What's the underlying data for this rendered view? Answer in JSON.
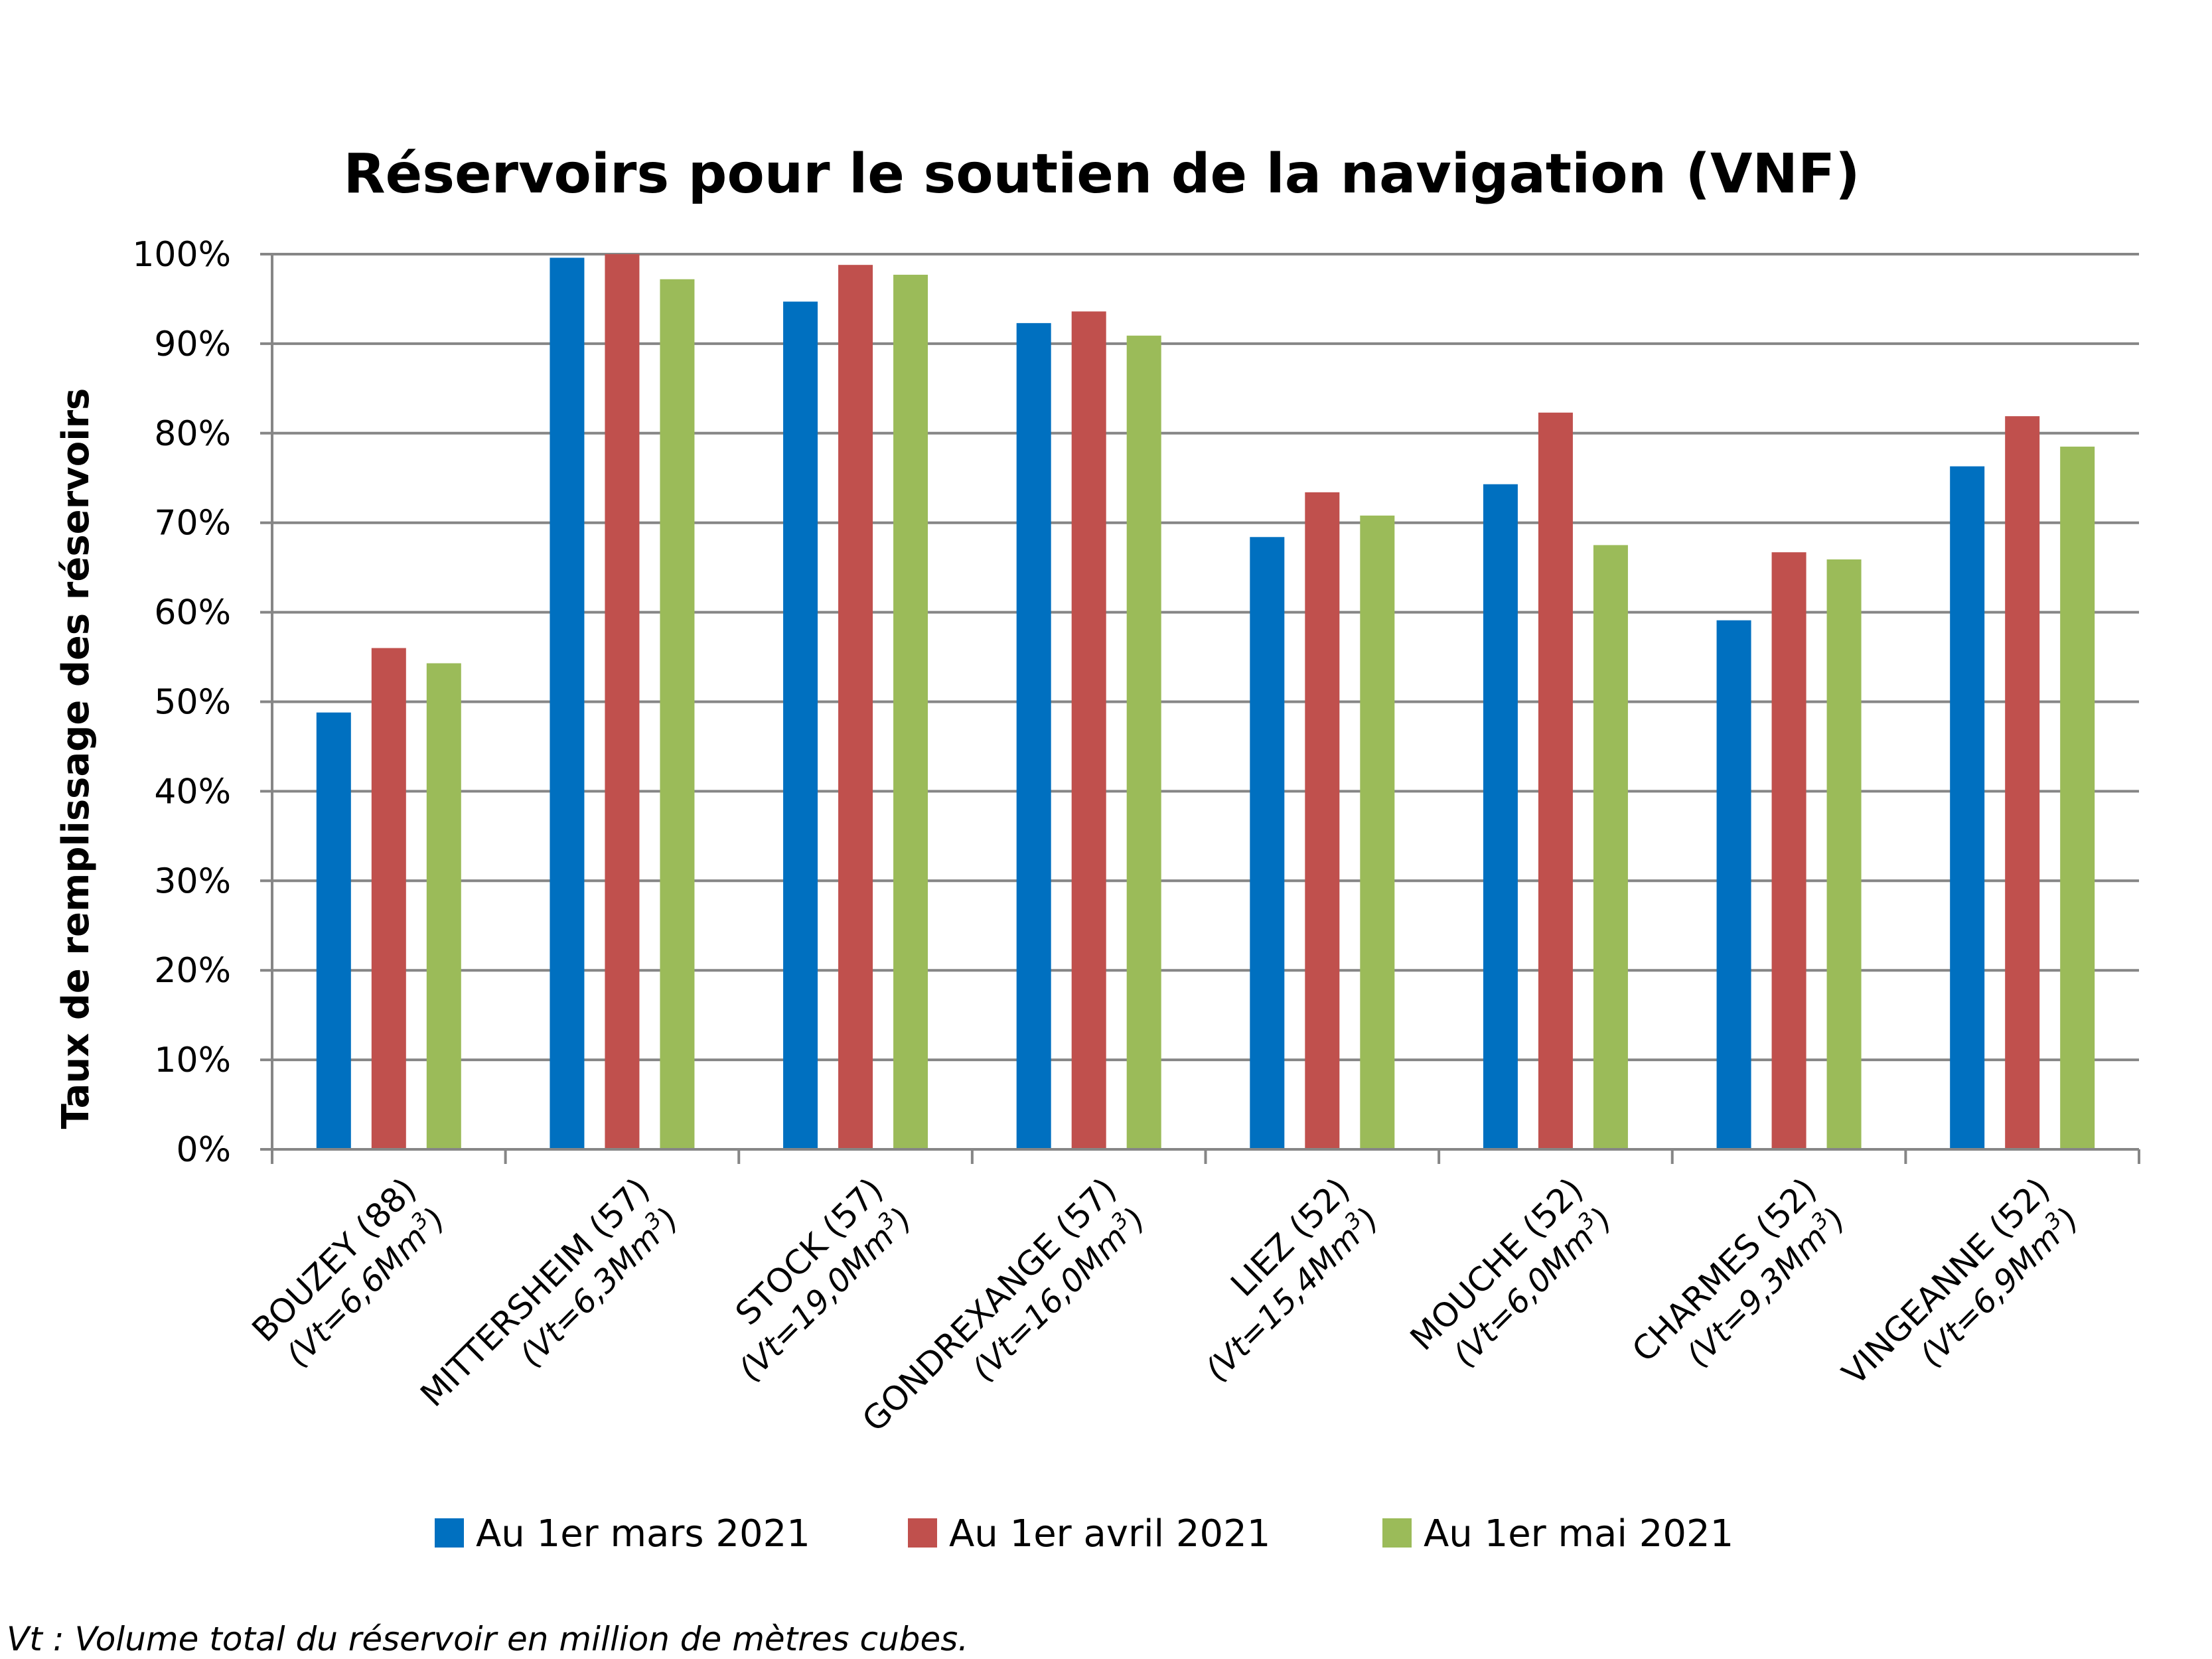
{
  "chart_data": {
    "type": "bar",
    "title": "Réservoirs pour le soutien de la navigation (VNF)",
    "ylabel": "Taux de remplissage des réservoirs",
    "xlabel": "",
    "ylim": [
      0,
      100
    ],
    "yticks": [
      "0%",
      "10%",
      "20%",
      "30%",
      "40%",
      "50%",
      "60%",
      "70%",
      "80%",
      "90%",
      "100%"
    ],
    "grid": true,
    "legend_position": "bottom",
    "categories": [
      {
        "name": "BOUZEY (88)",
        "volume": "(Vt=6,6Mm",
        "unit_sup": "3",
        "close": ")"
      },
      {
        "name": "MITTERSHEIM (57)",
        "volume": "(Vt=6,3Mm",
        "unit_sup": "3",
        "close": ")"
      },
      {
        "name": "STOCK (57)",
        "volume": "(Vt=19,0Mm",
        "unit_sup": "3",
        "close": ")"
      },
      {
        "name": "GONDREXANGE (57)",
        "volume": "(Vt=16,0Mm",
        "unit_sup": "3",
        "close": ")"
      },
      {
        "name": "LIEZ (52)",
        "volume": "(Vt=15,4Mm",
        "unit_sup": "3",
        "close": ")"
      },
      {
        "name": "MOUCHE (52)",
        "volume": "(Vt=6,0Mm",
        "unit_sup": "3",
        "close": ")"
      },
      {
        "name": "CHARMES (52)",
        "volume": "(Vt=9,3Mm",
        "unit_sup": "3",
        "close": ")"
      },
      {
        "name": "VINGEANNE (52)",
        "volume": "(Vt=6,9Mm",
        "unit_sup": "3",
        "close": ")"
      }
    ],
    "series": [
      {
        "name": "Au 1er mars 2021",
        "color": "#0070C0",
        "values": [
          48.8,
          99.6,
          94.7,
          92.3,
          68.4,
          74.3,
          59.1,
          76.3
        ]
      },
      {
        "name": "Au 1er avril 2021",
        "color": "#C0504D",
        "values": [
          56.0,
          100.0,
          98.8,
          93.6,
          73.4,
          82.3,
          66.7,
          81.9
        ]
      },
      {
        "name": "Au 1er mai 2021",
        "color": "#9BBB59",
        "values": [
          54.3,
          97.2,
          97.7,
          90.9,
          70.8,
          67.5,
          65.9,
          78.5
        ]
      }
    ]
  },
  "footnote": "Vt : Volume total du réservoir en million de mètres cubes."
}
